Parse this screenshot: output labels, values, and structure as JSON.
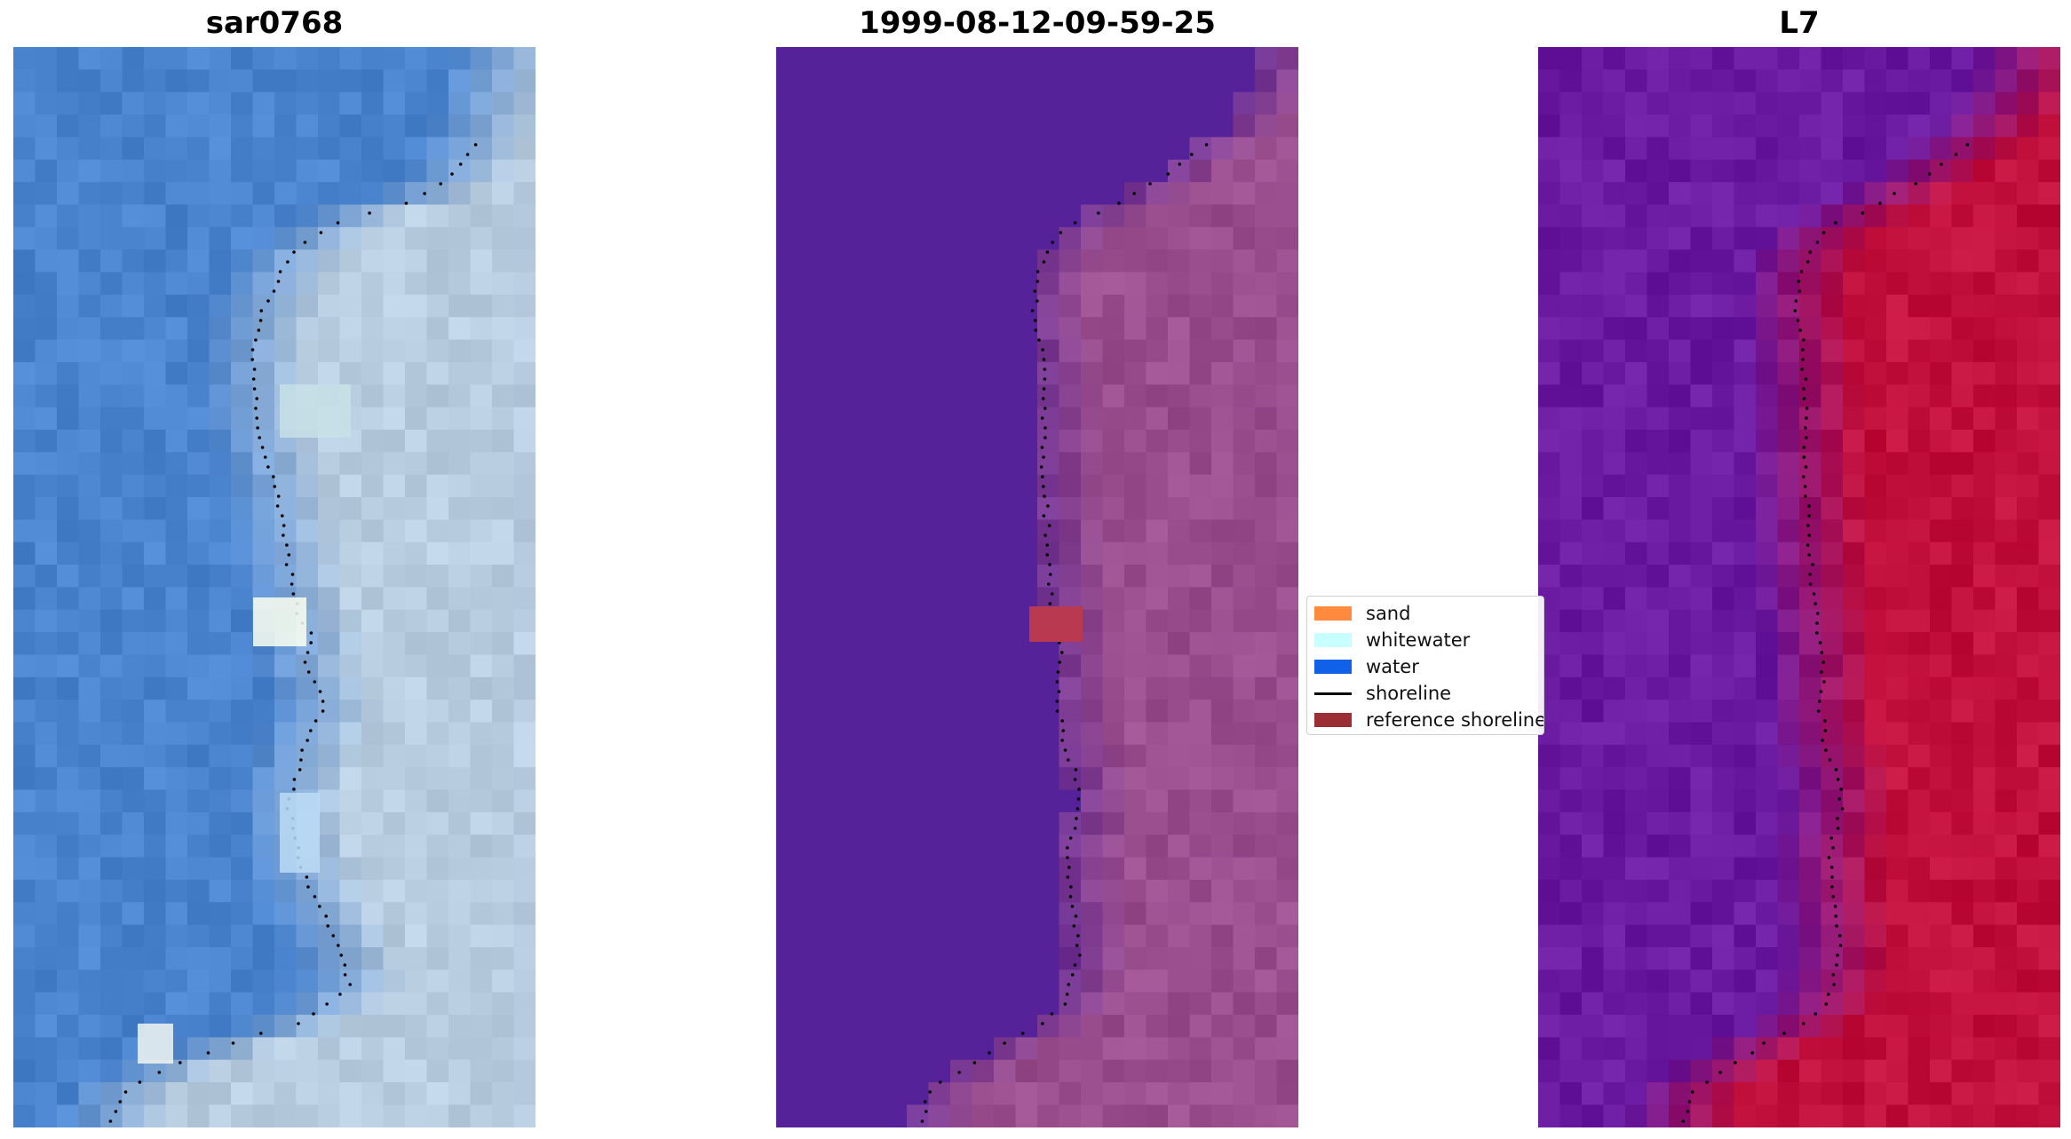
{
  "panels": [
    {
      "title": "sar0768"
    },
    {
      "title": "1999-08-12-09-59-25"
    },
    {
      "title": "L7"
    }
  ],
  "legend": {
    "items": [
      {
        "label": "sand",
        "color": "#ff8a3d",
        "type": "patch"
      },
      {
        "label": "whitewater",
        "color": "#c8ffff",
        "type": "patch"
      },
      {
        "label": "water",
        "color": "#1060e8",
        "type": "patch"
      },
      {
        "label": "shoreline",
        "color": "#000000",
        "type": "line"
      },
      {
        "label": "reference shoreline",
        "color": "#9b2d35",
        "type": "patch"
      }
    ]
  },
  "colors": {
    "rgb_water": "#4a84cf",
    "rgb_land": "#b9cde0",
    "class_water": "#55229a",
    "class_land": "#9a4e8e",
    "class_reference": "#b93a50",
    "index_water": "#6a1aa0",
    "index_land": "#c2103c",
    "shoreline_dots": "#000000"
  }
}
